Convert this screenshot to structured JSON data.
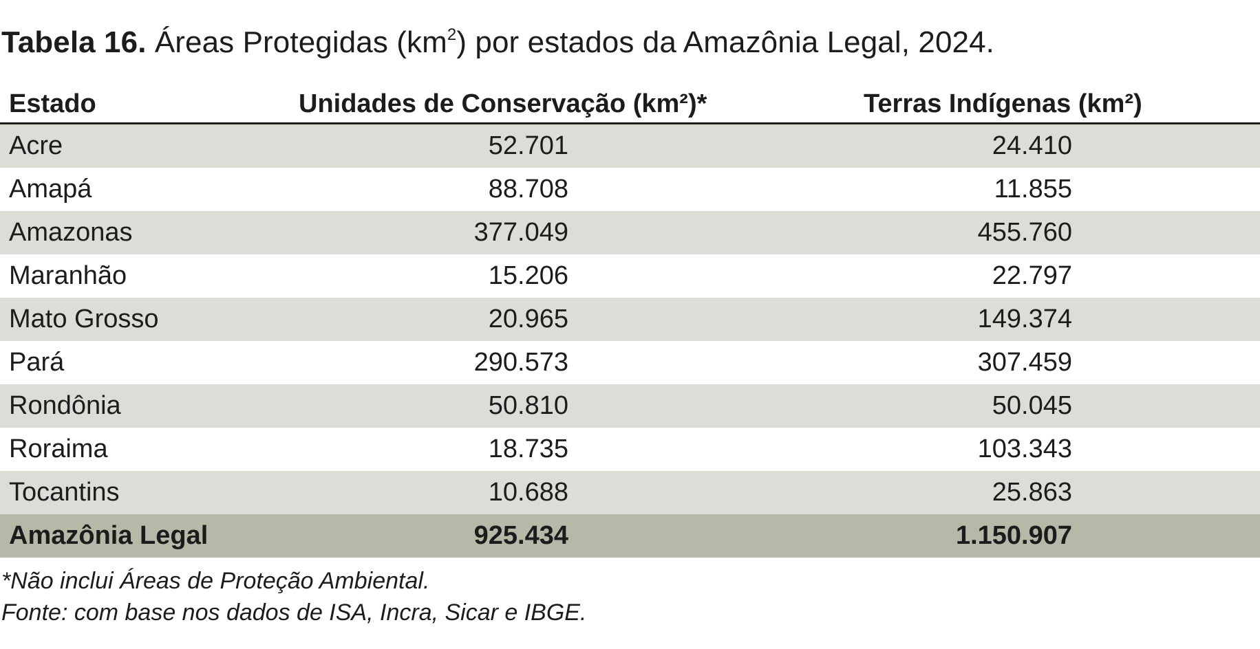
{
  "caption": {
    "label": "Tabela 16.",
    "text_before_sup": " Áreas Protegidas (km",
    "sup": "2",
    "text_after_sup": ") por estados da Amazônia Legal, 2024."
  },
  "table": {
    "headers": {
      "estado": "Estado",
      "uc": "Unidades de Conservação (km²)*",
      "ti": "Terras Indígenas (km²)"
    },
    "rows": [
      {
        "estado": "Acre",
        "uc": "52.701",
        "ti": "24.410"
      },
      {
        "estado": "Amapá",
        "uc": "88.708",
        "ti": "11.855"
      },
      {
        "estado": "Amazonas",
        "uc": "377.049",
        "ti": "455.760"
      },
      {
        "estado": "Maranhão",
        "uc": "15.206",
        "ti": "22.797"
      },
      {
        "estado": "Mato Grosso",
        "uc": "20.965",
        "ti": "149.374"
      },
      {
        "estado": "Pará",
        "uc": "290.573",
        "ti": "307.459"
      },
      {
        "estado": "Rondônia",
        "uc": "50.810",
        "ti": "50.045"
      },
      {
        "estado": "Roraima",
        "uc": "18.735",
        "ti": "103.343"
      },
      {
        "estado": "Tocantins",
        "uc": "10.688",
        "ti": "25.863"
      }
    ],
    "total": {
      "estado": "Amazônia Legal",
      "uc": "925.434",
      "ti": "1.150.907"
    }
  },
  "notes": {
    "footnote": "*Não inclui Áreas de Proteção Ambiental.",
    "source": "Fonte: com base nos dados de ISA, Incra, Sicar e IBGE."
  },
  "colors": {
    "row_shade": "#dedcd7",
    "total_row": "#b7b8a8",
    "text": "#1c1c1c"
  }
}
